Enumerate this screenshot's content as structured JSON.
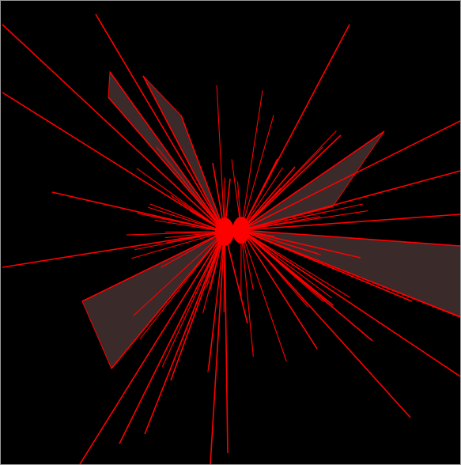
{
  "canvas": {
    "background": "#000000",
    "frame_border": "#9a9a9a",
    "ray_color": "#ff0000",
    "ray_fill": "#3a2a2a",
    "ray_count": 93
  }
}
